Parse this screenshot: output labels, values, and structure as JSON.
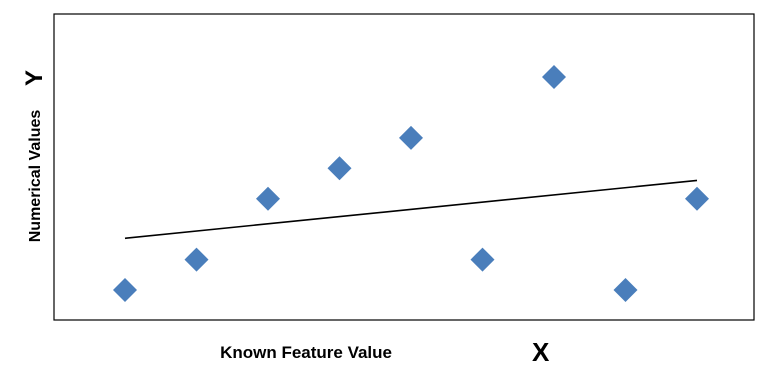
{
  "chart_data": {
    "type": "scatter",
    "xlabel": "Known Feature Value",
    "xlabel_symbol": "X",
    "ylabel": "Numerical Values",
    "ylabel_symbol": "Y",
    "grid": false,
    "legend": "none",
    "xlim": [
      0,
      9
    ],
    "ylim": [
      0,
      10
    ],
    "series": [
      {
        "marker": "diamond",
        "color": "#4a7ebb",
        "x": [
          1,
          2,
          3,
          4,
          5,
          6,
          7,
          8,
          9
        ],
        "y": [
          1,
          2,
          4,
          5,
          6,
          2,
          8,
          1,
          4
        ]
      }
    ],
    "trendline": {
      "type": "linear",
      "color": "#000000",
      "x": [
        1,
        9
      ],
      "y": [
        2.7,
        4.6
      ]
    }
  }
}
